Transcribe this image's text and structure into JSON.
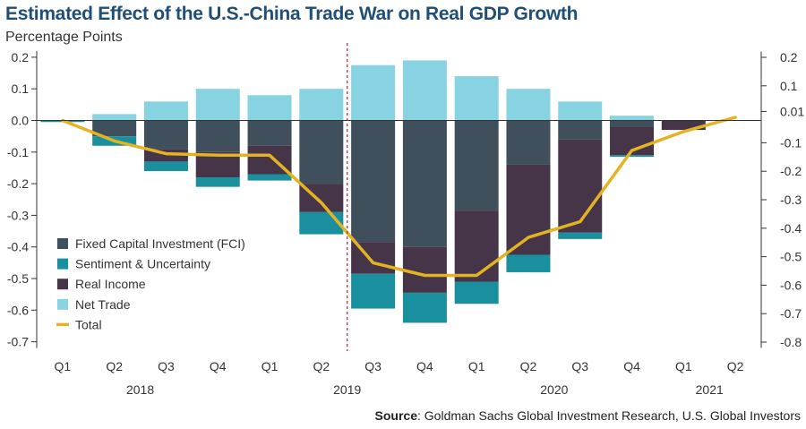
{
  "chart_data": {
    "type": "bar",
    "stacked": true,
    "title": "Estimated Effect of the U.S.-China Trade War on Real GDP Growth",
    "subtitle": "Percentage Points",
    "categories": [
      "Q1",
      "Q2",
      "Q3",
      "Q4",
      "Q1",
      "Q2",
      "Q3",
      "Q4",
      "Q1",
      "Q2",
      "Q3",
      "Q4",
      "Q1",
      "Q2"
    ],
    "years": [
      {
        "label": "2018",
        "from": 0,
        "to": 3
      },
      {
        "label": "2019",
        "from": 4,
        "to": 7
      },
      {
        "label": "2020",
        "from": 8,
        "to": 11
      },
      {
        "label": "2021",
        "from": 12,
        "to": 13
      }
    ],
    "divider_after_index": 5,
    "series": [
      {
        "name": "Fixed Capital Investment (FCI)",
        "color": "#3f4f5c",
        "values": [
          0,
          -0.05,
          -0.09,
          -0.1,
          -0.08,
          -0.2,
          -0.385,
          -0.4,
          -0.285,
          -0.14,
          -0.06,
          -0.02,
          0,
          0
        ]
      },
      {
        "name": "Real Income",
        "color": "#463548",
        "values": [
          0,
          0,
          -0.04,
          -0.08,
          -0.09,
          -0.09,
          -0.1,
          -0.145,
          -0.225,
          -0.285,
          -0.295,
          -0.09,
          -0.03,
          0
        ]
      },
      {
        "name": "Sentiment & Uncertainty",
        "color": "#1a8f9e",
        "values": [
          -0.005,
          -0.03,
          -0.03,
          -0.03,
          -0.02,
          -0.07,
          -0.11,
          -0.095,
          -0.07,
          -0.055,
          -0.02,
          -0.005,
          0,
          0
        ]
      },
      {
        "name": "Net Trade",
        "color": "#88d3e2",
        "values": [
          0,
          0.02,
          0.06,
          0.1,
          0.08,
          0.1,
          0.175,
          0.19,
          0.14,
          0.1,
          0.06,
          0.015,
          0,
          0
        ]
      }
    ],
    "total": {
      "name": "Total",
      "color": "#e3b322",
      "values": [
        0,
        -0.065,
        -0.105,
        -0.11,
        -0.11,
        -0.26,
        -0.45,
        -0.49,
        -0.49,
        -0.37,
        -0.32,
        -0.095,
        -0.035,
        0.01
      ]
    },
    "legend": [
      {
        "label": "Fixed Capital Investment (FCI)",
        "color": "#3f4f5c",
        "kind": "box"
      },
      {
        "label": "Sentiment & Uncertainty",
        "color": "#1a8f9e",
        "kind": "box"
      },
      {
        "label": "Real Income",
        "color": "#463548",
        "kind": "box"
      },
      {
        "label": "Net Trade",
        "color": "#88d3e2",
        "kind": "box"
      },
      {
        "label": "Total",
        "color": "#e3b322",
        "kind": "line"
      }
    ],
    "y_left": {
      "min": -0.75,
      "max": 0.2,
      "ticks": [
        0.2,
        0.1,
        0.0,
        -0.1,
        -0.2,
        -0.3,
        -0.4,
        -0.5,
        -0.6,
        -0.7
      ],
      "tick_labels": [
        "0.2",
        "0.1",
        "0.0",
        "-0.1",
        "-0.2",
        "-0.3",
        "-0.4",
        "-0.5",
        "-0.6",
        "-0.7"
      ]
    },
    "y_right": {
      "min": -0.9,
      "max": 0.2,
      "ticks": [
        0.2,
        0.1,
        0.01,
        -0.1,
        -0.2,
        -0.3,
        -0.4,
        -0.5,
        -0.6,
        -0.7,
        -0.8
      ],
      "tick_labels": [
        "0.2",
        "0.1",
        "0.01",
        "-0.1",
        "-0.2",
        "-0.3",
        "-0.4",
        "-0.5",
        "-0.6",
        "-0.7",
        "-0.8"
      ]
    }
  },
  "source": {
    "label": "Source",
    "text": ": Goldman Sachs Global Investment Research, U.S. Global Investors"
  }
}
